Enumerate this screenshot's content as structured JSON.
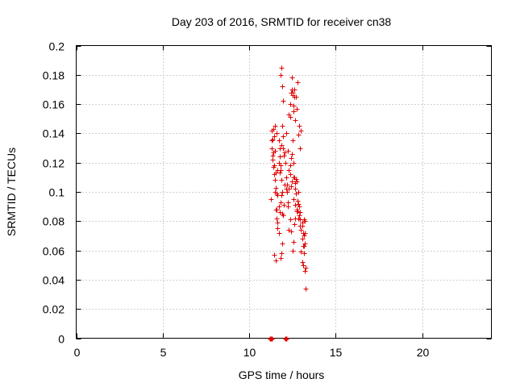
{
  "chart_data": {
    "type": "scatter",
    "title": "Day 203 of 2016, SRMTID for receiver cn38",
    "xlabel": "GPS time / hours",
    "ylabel": "SRMTID / TECUs",
    "xlim": [
      0,
      24
    ],
    "ylim": [
      0,
      0.2
    ],
    "xticks": [
      0,
      5,
      10,
      15,
      20
    ],
    "xtick_labels": [
      "0",
      "5",
      "10",
      "15",
      "20"
    ],
    "yticks": [
      0,
      0.02,
      0.04,
      0.06,
      0.08,
      0.1,
      0.12,
      0.14,
      0.16,
      0.18,
      0.2
    ],
    "ytick_labels": [
      "0",
      "0.02",
      "0.04",
      "0.06",
      "0.08",
      "0.1",
      "0.12",
      "0.14",
      "0.16",
      "0.18",
      "0.2"
    ],
    "grid": true,
    "marker": "+",
    "color": "#e00000",
    "series": [
      {
        "name": "SRMTID",
        "x": [
          11.25,
          11.3,
          11.35,
          11.4,
          11.45,
          11.5,
          11.55,
          11.6,
          11.65,
          11.7,
          11.75,
          11.8,
          11.85,
          11.9,
          11.95,
          12.0,
          12.1,
          12.15,
          12.2,
          12.25,
          12.3,
          12.35,
          12.4,
          12.45,
          12.5,
          12.55,
          12.6,
          12.65,
          12.7,
          12.75,
          12.8,
          12.85,
          12.9,
          12.95,
          13.0,
          13.05,
          13.1,
          13.15,
          13.2,
          13.25,
          11.3,
          11.35,
          11.4,
          11.5,
          11.55,
          11.6,
          11.65,
          11.7,
          11.8,
          11.85,
          11.9,
          11.95,
          12.0,
          12.2,
          12.25,
          12.3,
          12.35,
          12.4,
          12.5,
          12.55,
          12.6,
          12.65,
          12.75,
          12.8,
          12.85,
          12.9,
          13.0,
          13.05,
          13.1,
          13.15,
          13.2,
          11.4,
          11.45,
          11.5,
          11.6,
          11.7,
          11.75,
          11.8,
          11.85,
          11.9,
          11.95,
          12.3,
          12.35,
          12.4,
          12.45,
          12.5,
          12.6,
          12.7,
          12.75,
          12.8,
          12.9,
          13.0,
          13.1,
          13.15,
          13.2,
          13.25,
          11.85,
          11.8,
          11.9,
          12.45,
          12.5,
          12.55,
          12.6,
          11.45,
          11.55,
          11.6,
          11.7,
          11.8,
          11.9,
          12.05,
          12.15,
          12.3,
          12.4,
          12.55,
          12.65,
          12.7,
          12.85,
          12.95,
          13.05,
          13.15,
          13.2,
          11.35,
          11.5,
          11.65,
          11.75,
          11.85,
          12.05,
          12.15,
          12.25,
          12.35,
          12.45,
          12.55,
          12.65,
          12.75,
          12.95,
          13.05,
          13.1,
          11.3,
          11.45,
          11.55,
          11.65,
          11.75,
          11.95,
          12.35,
          12.55,
          12.65,
          12.85,
          12.95
        ],
        "y": [
          0.095,
          0.13,
          0.125,
          0.117,
          0.112,
          0.1,
          0.088,
          0.082,
          0.075,
          0.12,
          0.13,
          0.115,
          0.098,
          0.085,
          0.13,
          0.125,
          0.12,
          0.11,
          0.1,
          0.093,
          0.102,
          0.112,
          0.123,
          0.126,
          0.135,
          0.12,
          0.11,
          0.102,
          0.109,
          0.107,
          0.094,
          0.1,
          0.084,
          0.077,
          0.074,
          0.068,
          0.063,
          0.07,
          0.072,
          0.048,
          0.142,
          0.136,
          0.127,
          0.128,
          0.113,
          0.099,
          0.079,
          0.072,
          0.055,
          0.058,
          0.065,
          0.084,
          0.091,
          0.105,
          0.09,
          0.074,
          0.081,
          0.073,
          0.06,
          0.066,
          0.078,
          0.082,
          0.088,
          0.087,
          0.082,
          0.09,
          0.059,
          0.052,
          0.05,
          0.058,
          0.065,
          0.143,
          0.138,
          0.145,
          0.14,
          0.135,
          0.124,
          0.118,
          0.132,
          0.145,
          0.138,
          0.153,
          0.16,
          0.168,
          0.17,
          0.166,
          0.165,
          0.165,
          0.157,
          0.175,
          0.145,
          0.142,
          0.072,
          0.081,
          0.08,
          0.034,
          0.185,
          0.18,
          0.172,
          0.178,
          0.168,
          0.155,
          0.17,
          0.057,
          0.053,
          0.088,
          0.09,
          0.093,
          0.1,
          0.105,
          0.102,
          0.115,
          0.104,
          0.11,
          0.106,
          0.099,
          0.092,
          0.086,
          0.077,
          0.063,
          0.046,
          0.122,
          0.108,
          0.115,
          0.113,
          0.108,
          0.127,
          0.14,
          0.128,
          0.118,
          0.107,
          0.095,
          0.091,
          0.087,
          0.081,
          0.079,
          0.072,
          0.135,
          0.118,
          0.103,
          0.098,
          0.086,
          0.162,
          0.151,
          0.159,
          0.149,
          0.139,
          0.13
        ],
        "zero_x": [
          11.2,
          11.25,
          11.3,
          12.1,
          12.15
        ]
      }
    ]
  }
}
